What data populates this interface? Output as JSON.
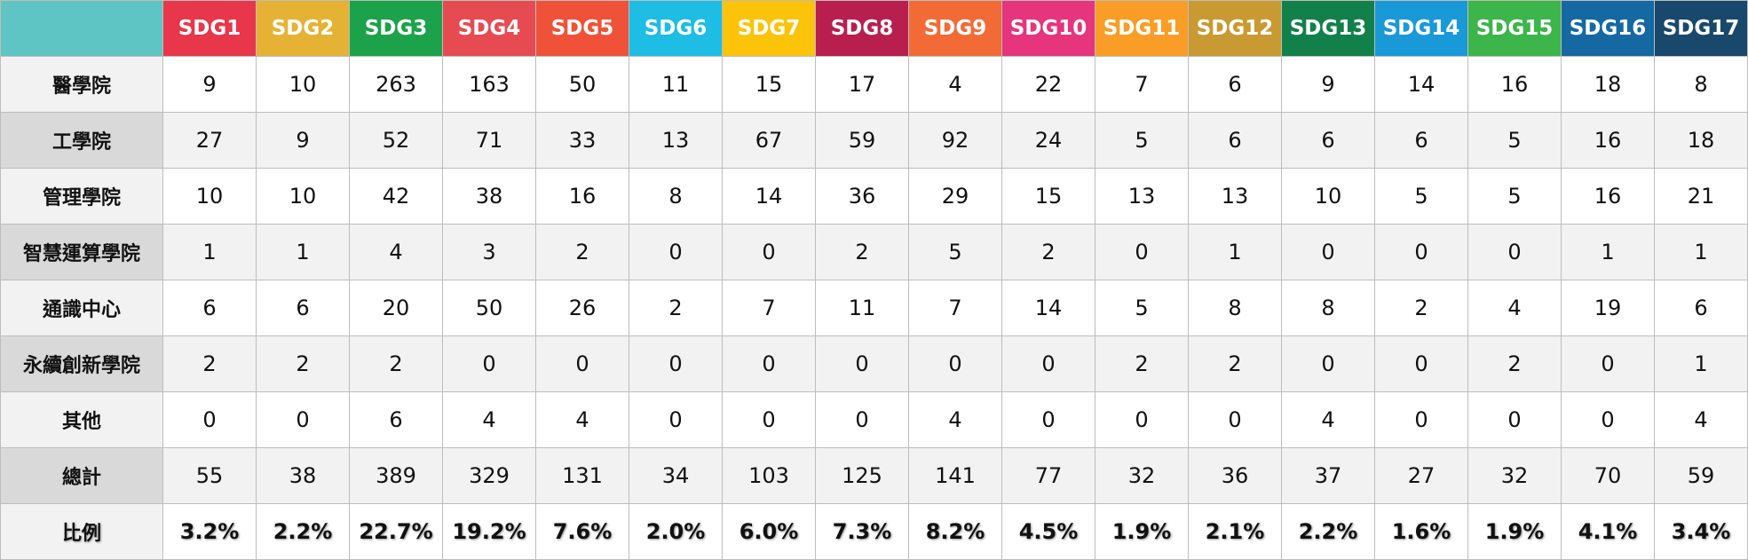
{
  "table": {
    "header": [
      "SDG1",
      "SDG2",
      "SDG3",
      "SDG4",
      "SDG5",
      "SDG6",
      "SDG7",
      "SDG8",
      "SDG9",
      "SDG10",
      "SDG11",
      "SDG12",
      "SDG13",
      "SDG14",
      "SDG15",
      "SDG16",
      "SDG17"
    ],
    "header_colors": [
      "#e8364a",
      "#e5b234",
      "#1ca24a",
      "#e64b52",
      "#ef5238",
      "#1dbde4",
      "#fcc30b",
      "#b81f4e",
      "#f26b37",
      "#e6357c",
      "#f99d26",
      "#c99a31",
      "#12804a",
      "#1999d8",
      "#3cb54a",
      "#1469a3",
      "#18486b"
    ],
    "rows": [
      {
        "label": "醫學院",
        "values": [
          9,
          10,
          263,
          163,
          50,
          11,
          15,
          17,
          4,
          22,
          7,
          6,
          9,
          14,
          16,
          18,
          8
        ]
      },
      {
        "label": "工學院",
        "values": [
          27,
          9,
          52,
          71,
          33,
          13,
          67,
          59,
          92,
          24,
          5,
          6,
          6,
          6,
          5,
          16,
          18
        ]
      },
      {
        "label": "管理學院",
        "values": [
          10,
          10,
          42,
          38,
          16,
          8,
          14,
          36,
          29,
          15,
          13,
          13,
          10,
          5,
          5,
          16,
          21
        ]
      },
      {
        "label": "智慧運算學院",
        "values": [
          1,
          1,
          4,
          3,
          2,
          0,
          0,
          2,
          5,
          2,
          0,
          1,
          0,
          0,
          0,
          1,
          1
        ]
      },
      {
        "label": "通識中心",
        "values": [
          6,
          6,
          20,
          50,
          26,
          2,
          7,
          11,
          7,
          14,
          5,
          8,
          8,
          2,
          4,
          19,
          6
        ]
      },
      {
        "label": "永續創新學院",
        "values": [
          2,
          2,
          2,
          0,
          0,
          0,
          0,
          0,
          0,
          0,
          2,
          2,
          0,
          0,
          2,
          0,
          1
        ]
      },
      {
        "label": "其他",
        "values": [
          0,
          0,
          6,
          4,
          4,
          0,
          0,
          0,
          4,
          0,
          0,
          0,
          4,
          0,
          0,
          0,
          4
        ]
      },
      {
        "label": "總計",
        "values": [
          55,
          38,
          389,
          329,
          131,
          34,
          103,
          125,
          141,
          77,
          32,
          36,
          37,
          27,
          32,
          70,
          59
        ]
      },
      {
        "label": "比例",
        "values": [
          "3.2%",
          "2.2%",
          "22.7%",
          "19.2%",
          "7.6%",
          "2.0%",
          "6.0%",
          "7.3%",
          "8.2%",
          "4.5%",
          "1.9%",
          "2.1%",
          "2.2%",
          "1.6%",
          "1.9%",
          "4.1%",
          "3.4%"
        ]
      }
    ]
  }
}
